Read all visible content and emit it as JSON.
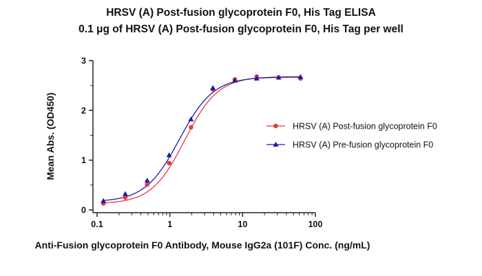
{
  "chart_data": {
    "type": "scatter",
    "title": "HRSV (A) Post-fusion glycoprotein F0, His Tag ELISA",
    "subtitle": "0.1 μg of HRSV (A) Post-fusion glycoprotein F0, His Tag per well",
    "xlabel": "Anti-Fusion glycoprotein F0 Antibody, Mouse IgG2a (101F) Conc. (ng/mL)",
    "ylabel": "Mean Abs. (OD450)",
    "xscale": "log",
    "xlim": [
      0.1,
      100
    ],
    "ylim": [
      0,
      3
    ],
    "x_ticks": [
      0.1,
      1,
      10,
      100
    ],
    "x_tick_labels": [
      "0.1",
      "1",
      "10",
      "100"
    ],
    "y_ticks": [
      0,
      1,
      2,
      3
    ],
    "y_tick_labels": [
      "0",
      "1",
      "2",
      "3"
    ],
    "grid": false,
    "legend_position": "right",
    "series": [
      {
        "name": "HRSV (A) Post-fusion glycoprotein F0",
        "color": "#e8383d",
        "marker": "circle",
        "x": [
          0.122,
          0.244,
          0.488,
          0.977,
          1.953,
          3.906,
          7.813,
          15.625,
          31.25,
          62.5
        ],
        "y": [
          0.13,
          0.25,
          0.51,
          0.94,
          1.66,
          2.42,
          2.62,
          2.68,
          2.66,
          2.64
        ],
        "fit": {
          "bottom": 0.12,
          "top": 2.68,
          "ec50": 1.6,
          "hill": 1.9
        }
      },
      {
        "name": "HRSV (A) Pre-fusion glycoprotein F0",
        "color": "#1a1aa8",
        "marker": "triangle",
        "x": [
          0.122,
          0.244,
          0.488,
          0.977,
          1.953,
          3.906,
          7.813,
          15.625,
          31.25,
          62.5
        ],
        "y": [
          0.18,
          0.32,
          0.59,
          1.1,
          1.82,
          2.45,
          2.6,
          2.64,
          2.66,
          2.67
        ],
        "fit": {
          "bottom": 0.16,
          "top": 2.67,
          "ec50": 1.35,
          "hill": 1.85
        }
      }
    ]
  }
}
